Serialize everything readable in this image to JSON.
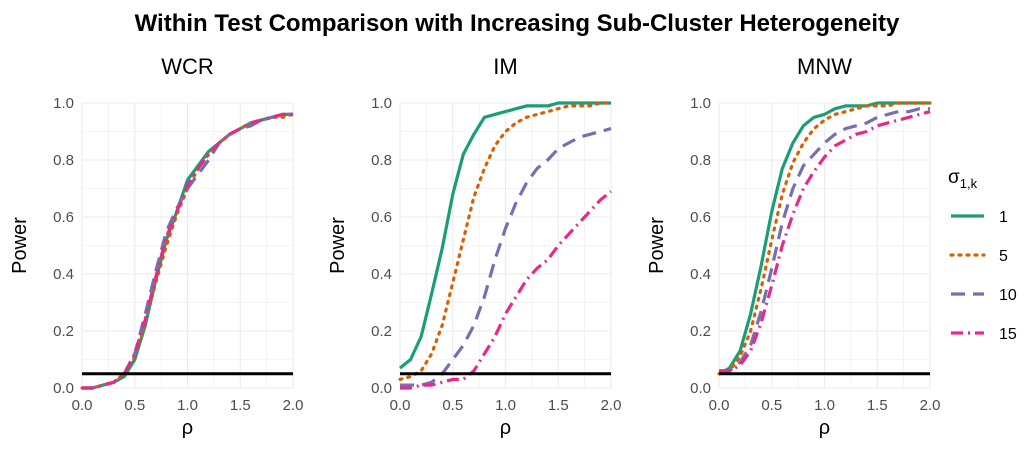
{
  "figure": {
    "title": "Within Test Comparison with Increasing Sub-Cluster Heterogeneity",
    "legend": {
      "title_main": "σ",
      "title_sub": "1,k",
      "placement": "right",
      "entries": [
        "1",
        "5",
        "10",
        "15"
      ]
    }
  },
  "colors": {
    "1": "#1b9e77",
    "5": "#d95f02",
    "10": "#7570b3",
    "15": "#e7298a",
    "reference_line": "#000000",
    "grid": "#ebebeb"
  },
  "chart_data": [
    {
      "type": "line",
      "title": "WCR",
      "xlabel": "ρ",
      "ylabel": "Power",
      "xlim": [
        0,
        2
      ],
      "ylim": [
        0,
        1
      ],
      "xticks": [
        "0.0",
        "0.5",
        "1.0",
        "1.5",
        "2.0"
      ],
      "yticks": [
        "0.0",
        "0.2",
        "0.4",
        "0.6",
        "0.8",
        "1.0"
      ],
      "grid": true,
      "reference_line": 0.05,
      "series": [
        {
          "name": "1",
          "x": [
            0,
            0.1,
            0.2,
            0.3,
            0.4,
            0.5,
            0.6,
            0.7,
            0.8,
            0.9,
            1.0,
            1.1,
            1.2,
            1.3,
            1.4,
            1.5,
            1.6,
            1.7,
            1.8,
            1.9,
            2.0
          ],
          "values": [
            0.0,
            0.0,
            0.01,
            0.02,
            0.04,
            0.1,
            0.22,
            0.38,
            0.52,
            0.62,
            0.73,
            0.78,
            0.83,
            0.86,
            0.89,
            0.91,
            0.93,
            0.94,
            0.95,
            0.96,
            0.96
          ]
        },
        {
          "name": "5",
          "x": [
            0,
            0.1,
            0.2,
            0.3,
            0.4,
            0.5,
            0.6,
            0.7,
            0.8,
            0.9,
            1.0,
            1.1,
            1.2,
            1.3,
            1.4,
            1.5,
            1.6,
            1.7,
            1.8,
            1.9,
            2.0
          ],
          "values": [
            0.0,
            0.0,
            0.01,
            0.02,
            0.05,
            0.11,
            0.23,
            0.37,
            0.5,
            0.61,
            0.7,
            0.77,
            0.82,
            0.86,
            0.89,
            0.91,
            0.93,
            0.94,
            0.95,
            0.95,
            0.96
          ]
        },
        {
          "name": "10",
          "x": [
            0,
            0.1,
            0.2,
            0.3,
            0.4,
            0.5,
            0.6,
            0.7,
            0.8,
            0.9,
            1.0,
            1.1,
            1.2,
            1.3,
            1.4,
            1.5,
            1.6,
            1.7,
            1.8,
            1.9,
            2.0
          ],
          "values": [
            0.0,
            0.0,
            0.01,
            0.02,
            0.05,
            0.12,
            0.26,
            0.41,
            0.55,
            0.63,
            0.7,
            0.75,
            0.8,
            0.86,
            0.89,
            0.91,
            0.92,
            0.94,
            0.95,
            0.96,
            0.96
          ]
        },
        {
          "name": "15",
          "x": [
            0,
            0.1,
            0.2,
            0.3,
            0.4,
            0.5,
            0.6,
            0.7,
            0.8,
            0.9,
            1.0,
            1.1,
            1.2,
            1.3,
            1.4,
            1.5,
            1.6,
            1.7,
            1.8,
            1.9,
            2.0
          ],
          "values": [
            0.0,
            0.0,
            0.01,
            0.02,
            0.05,
            0.12,
            0.24,
            0.39,
            0.53,
            0.62,
            0.71,
            0.77,
            0.82,
            0.86,
            0.89,
            0.91,
            0.93,
            0.94,
            0.95,
            0.96,
            0.96
          ]
        }
      ]
    },
    {
      "type": "line",
      "title": "IM",
      "xlabel": "ρ",
      "ylabel": "Power",
      "xlim": [
        0,
        2
      ],
      "ylim": [
        0,
        1
      ],
      "xticks": [
        "0.0",
        "0.5",
        "1.0",
        "1.5",
        "2.0"
      ],
      "yticks": [
        "0.0",
        "0.2",
        "0.4",
        "0.6",
        "0.8",
        "1.0"
      ],
      "grid": true,
      "reference_line": 0.05,
      "series": [
        {
          "name": "1",
          "x": [
            0,
            0.1,
            0.2,
            0.3,
            0.4,
            0.5,
            0.6,
            0.7,
            0.8,
            0.9,
            1.0,
            1.1,
            1.2,
            1.3,
            1.4,
            1.5,
            1.6,
            1.7,
            1.8,
            1.9,
            2.0
          ],
          "values": [
            0.07,
            0.1,
            0.18,
            0.33,
            0.49,
            0.68,
            0.82,
            0.89,
            0.95,
            0.96,
            0.97,
            0.98,
            0.99,
            0.99,
            0.99,
            1.0,
            1.0,
            1.0,
            1.0,
            1.0,
            1.0
          ]
        },
        {
          "name": "5",
          "x": [
            0,
            0.1,
            0.2,
            0.3,
            0.4,
            0.5,
            0.6,
            0.7,
            0.8,
            0.9,
            1.0,
            1.1,
            1.2,
            1.3,
            1.4,
            1.5,
            1.6,
            1.7,
            1.8,
            1.9,
            2.0
          ],
          "values": [
            0.03,
            0.04,
            0.06,
            0.12,
            0.22,
            0.37,
            0.52,
            0.67,
            0.77,
            0.85,
            0.9,
            0.93,
            0.95,
            0.96,
            0.97,
            0.98,
            0.99,
            0.99,
            0.99,
            1.0,
            1.0
          ]
        },
        {
          "name": "10",
          "x": [
            0,
            0.1,
            0.2,
            0.3,
            0.4,
            0.5,
            0.6,
            0.7,
            0.8,
            0.9,
            1.0,
            1.1,
            1.2,
            1.3,
            1.4,
            1.5,
            1.6,
            1.7,
            1.8,
            1.9,
            2.0
          ],
          "values": [
            0.01,
            0.01,
            0.01,
            0.02,
            0.05,
            0.1,
            0.15,
            0.22,
            0.32,
            0.45,
            0.56,
            0.65,
            0.72,
            0.77,
            0.8,
            0.84,
            0.86,
            0.88,
            0.89,
            0.9,
            0.91
          ]
        },
        {
          "name": "15",
          "x": [
            0,
            0.1,
            0.2,
            0.3,
            0.4,
            0.5,
            0.6,
            0.7,
            0.8,
            0.9,
            1.0,
            1.1,
            1.2,
            1.3,
            1.4,
            1.5,
            1.6,
            1.7,
            1.8,
            1.9,
            2.0
          ],
          "values": [
            0.0,
            0.0,
            0.01,
            0.01,
            0.02,
            0.03,
            0.03,
            0.06,
            0.12,
            0.18,
            0.26,
            0.32,
            0.38,
            0.42,
            0.45,
            0.5,
            0.54,
            0.58,
            0.62,
            0.66,
            0.69
          ]
        }
      ]
    },
    {
      "type": "line",
      "title": "MNW",
      "xlabel": "ρ",
      "ylabel": "Power",
      "xlim": [
        0,
        2
      ],
      "ylim": [
        0,
        1
      ],
      "xticks": [
        "0.0",
        "0.5",
        "1.0",
        "1.5",
        "2.0"
      ],
      "yticks": [
        "0.0",
        "0.2",
        "0.4",
        "0.6",
        "0.8",
        "1.0"
      ],
      "grid": true,
      "reference_line": 0.05,
      "series": [
        {
          "name": "1",
          "x": [
            0,
            0.1,
            0.2,
            0.3,
            0.4,
            0.5,
            0.6,
            0.7,
            0.8,
            0.9,
            1.0,
            1.1,
            1.2,
            1.3,
            1.4,
            1.5,
            1.6,
            1.7,
            1.8,
            1.9,
            2.0
          ],
          "values": [
            0.05,
            0.07,
            0.13,
            0.26,
            0.43,
            0.62,
            0.77,
            0.86,
            0.92,
            0.95,
            0.96,
            0.98,
            0.99,
            0.99,
            0.99,
            1.0,
            1.0,
            1.0,
            1.0,
            1.0,
            1.0
          ]
        },
        {
          "name": "5",
          "x": [
            0,
            0.1,
            0.2,
            0.3,
            0.4,
            0.5,
            0.6,
            0.7,
            0.8,
            0.9,
            1.0,
            1.1,
            1.2,
            1.3,
            1.4,
            1.5,
            1.6,
            1.7,
            1.8,
            1.9,
            2.0
          ],
          "values": [
            0.05,
            0.06,
            0.11,
            0.2,
            0.35,
            0.52,
            0.68,
            0.79,
            0.86,
            0.91,
            0.94,
            0.96,
            0.97,
            0.98,
            0.99,
            0.99,
            0.99,
            1.0,
            1.0,
            1.0,
            1.0
          ]
        },
        {
          "name": "10",
          "x": [
            0,
            0.1,
            0.2,
            0.3,
            0.4,
            0.5,
            0.6,
            0.7,
            0.8,
            0.9,
            1.0,
            1.1,
            1.2,
            1.3,
            1.4,
            1.5,
            1.6,
            1.7,
            1.8,
            1.9,
            2.0
          ],
          "values": [
            0.06,
            0.06,
            0.09,
            0.15,
            0.27,
            0.42,
            0.58,
            0.7,
            0.78,
            0.82,
            0.86,
            0.89,
            0.91,
            0.92,
            0.93,
            0.95,
            0.96,
            0.97,
            0.97,
            0.98,
            0.98
          ]
        },
        {
          "name": "15",
          "x": [
            0,
            0.1,
            0.2,
            0.3,
            0.4,
            0.5,
            0.6,
            0.7,
            0.8,
            0.9,
            1.0,
            1.1,
            1.2,
            1.3,
            1.4,
            1.5,
            1.6,
            1.7,
            1.8,
            1.9,
            2.0
          ],
          "values": [
            0.06,
            0.06,
            0.08,
            0.13,
            0.23,
            0.36,
            0.5,
            0.61,
            0.7,
            0.76,
            0.81,
            0.85,
            0.87,
            0.89,
            0.9,
            0.92,
            0.93,
            0.94,
            0.95,
            0.96,
            0.97
          ]
        }
      ]
    }
  ]
}
